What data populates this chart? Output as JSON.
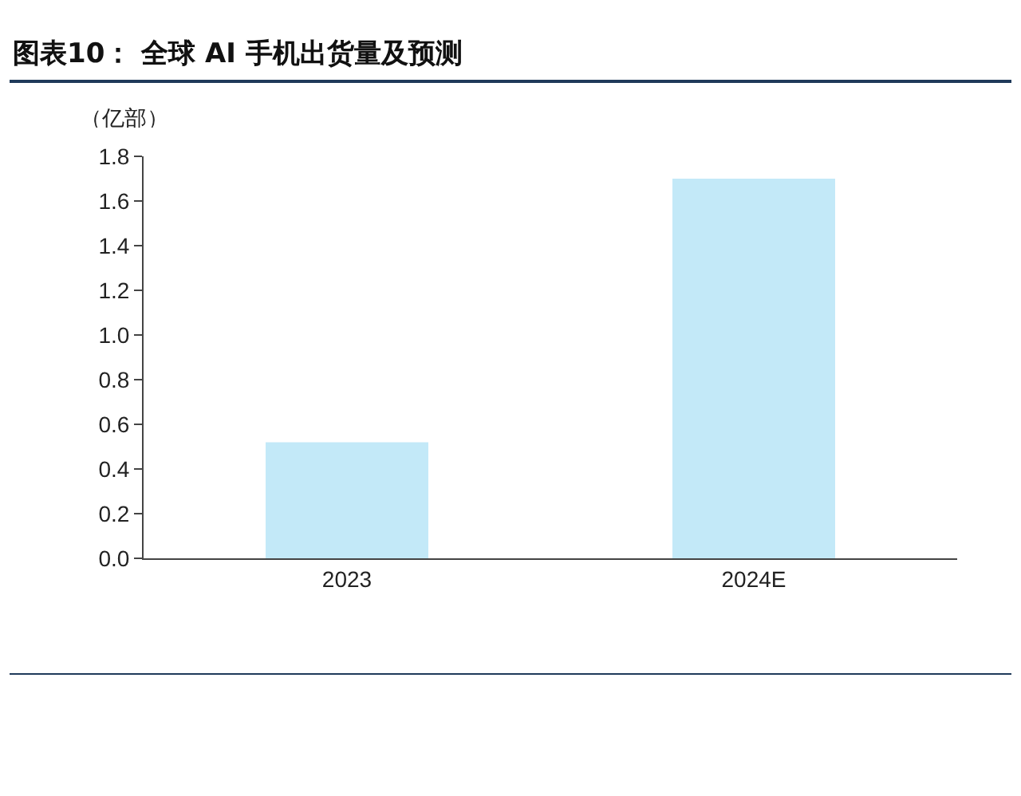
{
  "chart_data": {
    "type": "bar",
    "title": "图表10： 全球 AI 手机出货量及预测",
    "ylabel": "（亿部）",
    "categories": [
      "2023",
      "2024E"
    ],
    "values": [
      0.52,
      1.7
    ],
    "color": "#c3e9f8",
    "ylim": [
      0,
      1.8
    ],
    "yticks": [
      {
        "value": 0,
        "label": "0.0"
      },
      {
        "value": 0.2,
        "label": "0.2"
      },
      {
        "value": 0.4,
        "label": "0.4"
      },
      {
        "value": 0.6,
        "label": "0.6"
      },
      {
        "value": 0.8,
        "label": "0.8"
      },
      {
        "value": 1,
        "label": "1.0"
      },
      {
        "value": 1.2,
        "label": "1.2"
      },
      {
        "value": 1.4,
        "label": "1.4"
      },
      {
        "value": 1.6,
        "label": "1.6"
      },
      {
        "value": 1.8,
        "label": "1.8"
      }
    ],
    "grid": false
  }
}
